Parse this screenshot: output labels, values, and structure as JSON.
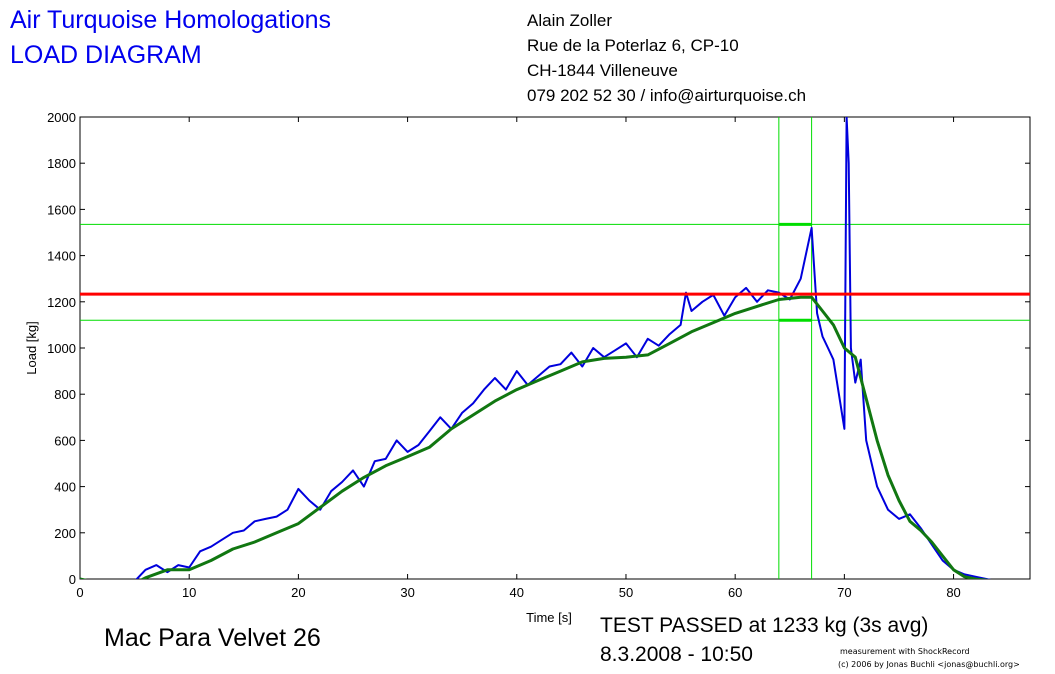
{
  "header": {
    "title_line1": "Air Turquoise Homologations",
    "title_line2": "LOAD DIAGRAM",
    "address": [
      "Alain Zoller",
      "Rue de la Poterlaz 6, CP-10",
      "CH-1844 Villeneuve",
      "079 202 52 30 / info@airturquoise.ch"
    ]
  },
  "footer": {
    "glider": "Mac Para Velvet 26",
    "result": "TEST PASSED at 1233 kg (3s avg)",
    "datetime": "8.3.2008 - 10:50",
    "credit_line1": "measurement with ShockRecord",
    "credit_line2": "(c) 2006 by Jonas Buchli <jonas@buchli.org>"
  },
  "chart_data": {
    "type": "line",
    "xlabel": "Time [s]",
    "ylabel": "Load [kg]",
    "xlim": [
      0,
      87
    ],
    "ylim": [
      0,
      2000
    ],
    "x_ticks": [
      0,
      10,
      20,
      30,
      40,
      50,
      60,
      70,
      80
    ],
    "y_ticks": [
      0,
      200,
      400,
      600,
      800,
      1000,
      1200,
      1400,
      1600,
      1800,
      2000
    ],
    "grid": false,
    "colors": {
      "raw": "#0000dd",
      "avg": "#117711",
      "threshold": "#ff0000",
      "markers": "#00dd00"
    },
    "series": [
      {
        "key": "raw",
        "x": [
          0,
          2,
          4,
          5,
          6,
          7,
          8,
          9,
          10,
          11,
          12,
          13,
          14,
          15,
          16,
          17,
          18,
          19,
          20,
          21,
          22,
          23,
          24,
          25,
          26,
          27,
          28,
          29,
          30,
          31,
          32,
          33,
          34,
          35,
          36,
          37,
          38,
          39,
          40,
          41,
          42,
          43,
          44,
          45,
          46,
          47,
          48,
          49,
          50,
          51,
          52,
          53,
          54,
          55,
          55.5,
          56,
          57,
          58,
          59,
          60,
          61,
          62,
          63,
          64,
          65,
          66,
          67,
          67.5,
          68,
          68.5,
          69,
          69.5,
          70,
          70.2,
          70.4,
          70.6,
          71,
          71.5,
          72,
          73,
          74,
          75,
          76,
          77,
          78,
          79,
          80,
          81,
          82,
          83,
          84,
          85,
          86,
          87
        ],
        "y": [
          0,
          -20,
          -30,
          -10,
          40,
          60,
          30,
          60,
          50,
          120,
          140,
          170,
          200,
          210,
          250,
          260,
          270,
          300,
          390,
          340,
          300,
          380,
          420,
          470,
          400,
          510,
          520,
          600,
          550,
          580,
          640,
          700,
          650,
          720,
          760,
          820,
          870,
          820,
          900,
          840,
          880,
          920,
          930,
          980,
          920,
          1000,
          960,
          990,
          1020,
          960,
          1040,
          1010,
          1060,
          1100,
          1240,
          1160,
          1200,
          1230,
          1140,
          1220,
          1260,
          1200,
          1250,
          1240,
          1210,
          1300,
          1520,
          1150,
          1050,
          1000,
          950,
          800,
          650,
          2000,
          1800,
          1000,
          850,
          950,
          600,
          400,
          300,
          260,
          280,
          220,
          150,
          80,
          40,
          20,
          10,
          0,
          -10,
          -20,
          -30,
          -30
        ]
      },
      {
        "key": "avg",
        "x": [
          0,
          2,
          4,
          5,
          6,
          8,
          10,
          12,
          14,
          16,
          18,
          20,
          22,
          24,
          26,
          28,
          30,
          32,
          34,
          36,
          38,
          40,
          42,
          44,
          46,
          48,
          50,
          52,
          54,
          56,
          58,
          60,
          62,
          64,
          66,
          67,
          68,
          69,
          70,
          71,
          72,
          73,
          74,
          75,
          76,
          77,
          78,
          79,
          80,
          81,
          82,
          84,
          86,
          87
        ],
        "y": [
          0,
          -20,
          -30,
          -20,
          5,
          40,
          40,
          80,
          130,
          160,
          200,
          240,
          310,
          380,
          440,
          490,
          530,
          570,
          650,
          710,
          770,
          820,
          860,
          900,
          940,
          955,
          960,
          970,
          1020,
          1070,
          1110,
          1150,
          1180,
          1210,
          1220,
          1220,
          1160,
          1100,
          1000,
          960,
          780,
          600,
          450,
          340,
          250,
          210,
          160,
          100,
          40,
          10,
          0,
          -10,
          -20,
          -20
        ]
      }
    ],
    "threshold": 1233,
    "markers": {
      "vertical_x": [
        64,
        67
      ],
      "horizontal_y": [
        1535,
        1120
      ]
    }
  }
}
